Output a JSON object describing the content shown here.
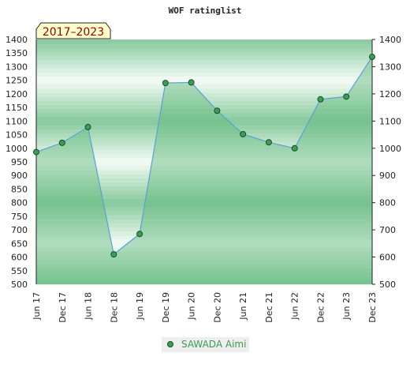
{
  "page": {
    "title": "WOF ratinglist",
    "badge": "2017–2023"
  },
  "colors": {
    "band_dark": "#86c99c",
    "band_light": "#f4fbf6",
    "area_fill": "#5fb97a",
    "line": "#5aa0d8",
    "marker": "#3b9e55",
    "marker_stroke": "#1e4a28",
    "badge_bg": "#ffffcc",
    "legend_bg": "#eeeeee",
    "legend_text": "#3a9a50"
  },
  "chart_data": {
    "type": "area",
    "title": "WOF ratinglist",
    "categories": [
      "Jun 17",
      "Dec 17",
      "Jun 18",
      "Dec 18",
      "Jun 19",
      "Dec 19",
      "Jun 20",
      "Dec 20",
      "Jun 21",
      "Dec 21",
      "Jun 22",
      "Dec 22",
      "Jun 23",
      "Dec 23"
    ],
    "series": [
      {
        "name": "SAWADA Aimi",
        "values": [
          986,
          1020,
          1078,
          610,
          685,
          1240,
          1242,
          1138,
          1052,
          1022,
          1000,
          1180,
          1190,
          1336
        ]
      }
    ],
    "ylim": [
      500,
      1400
    ],
    "yticks_left": [
      500,
      550,
      600,
      650,
      700,
      750,
      800,
      850,
      900,
      950,
      1000,
      1050,
      1100,
      1150,
      1200,
      1250,
      1300,
      1350,
      1400
    ],
    "yticks_right": [
      500,
      600,
      700,
      800,
      900,
      1000,
      1100,
      1200,
      1300,
      1400
    ],
    "legend": "bottom-center",
    "grid": false
  }
}
